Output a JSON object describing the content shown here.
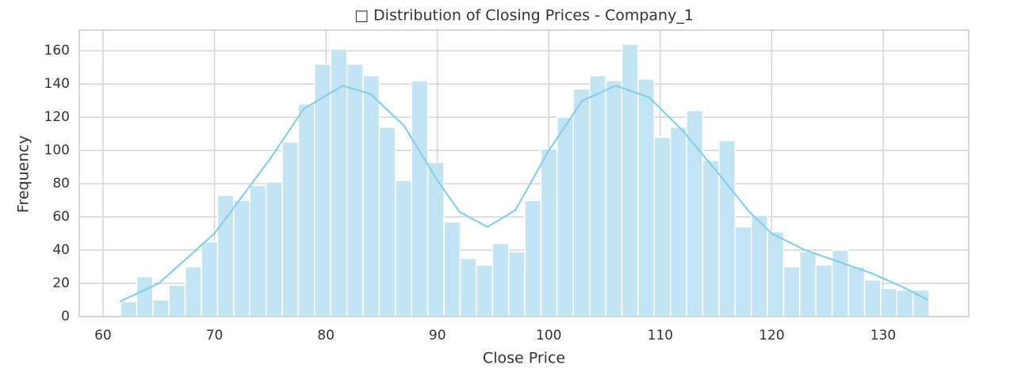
{
  "chart_data": {
    "type": "histogram",
    "title": "□ Distribution of Closing Prices - Company_1",
    "x_label": "Close Price",
    "y_label": "Frequency",
    "bins": [
      61.57,
      63.02,
      64.47,
      65.92,
      67.37,
      68.83,
      70.28,
      71.73,
      73.18,
      74.63,
      76.08,
      77.53,
      78.98,
      80.44,
      81.89,
      83.34,
      84.79,
      86.24,
      87.69,
      89.14,
      90.59,
      92.05,
      93.5,
      94.95,
      96.4,
      97.85,
      99.3,
      100.75,
      102.2,
      103.66,
      105.11,
      106.56,
      108.01,
      109.46,
      110.91,
      112.36,
      113.81,
      115.27,
      116.72,
      118.17,
      119.62,
      121.07,
      122.52,
      123.97,
      125.42,
      126.88,
      128.33,
      129.78,
      131.23,
      132.68,
      134.13
    ],
    "counts": [
      9,
      24,
      10,
      19,
      30,
      45,
      73,
      70,
      79,
      81,
      105,
      128,
      152,
      161,
      152,
      145,
      114,
      82,
      142,
      93,
      57,
      35,
      31,
      44,
      39,
      70,
      101,
      120,
      137,
      145,
      142,
      164,
      143,
      108,
      114,
      124,
      94,
      106,
      54,
      61,
      51,
      30,
      39,
      31,
      40,
      30,
      22,
      17,
      16,
      16
    ],
    "color": "#c3e4f3",
    "kde": {
      "color": "#87ceeb",
      "x": [
        61.5,
        65,
        70,
        75,
        78,
        81.5,
        84,
        87,
        90,
        92,
        94.5,
        97,
        100,
        103,
        106,
        109,
        112,
        115,
        118,
        120,
        123,
        126,
        129,
        132,
        134
      ],
      "y": [
        9,
        20,
        50,
        95,
        125,
        139,
        134,
        115,
        82,
        63,
        54,
        64,
        100,
        130,
        139,
        132,
        112,
        88,
        63,
        50,
        40,
        33,
        26,
        17,
        10
      ]
    },
    "xlim": [
      57.87,
      137.68
    ],
    "ylim": [
      0,
      172.5
    ],
    "xticks": [
      60,
      70,
      80,
      90,
      100,
      110,
      120,
      130
    ],
    "yticks": [
      0,
      20,
      40,
      60,
      80,
      100,
      120,
      140,
      160
    ],
    "grid": true
  }
}
